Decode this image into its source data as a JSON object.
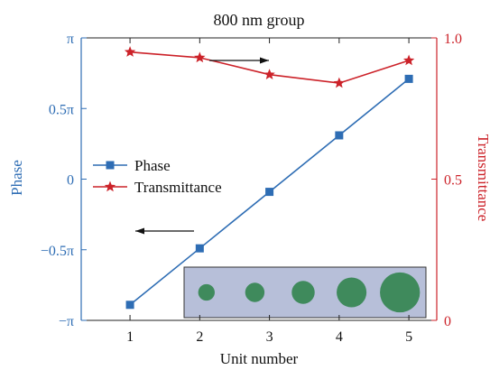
{
  "chart_data": {
    "type": "line",
    "title": "800 nm group",
    "xlabel": "Unit number",
    "ylabel_left": "Phase",
    "ylabel_right": "Transmittance",
    "x": [
      1,
      2,
      3,
      4,
      5
    ],
    "xlim": [
      0.3,
      5.4
    ],
    "x_ticks": [
      "1",
      "2",
      "3",
      "4",
      "5"
    ],
    "left_axis": {
      "ylim": [
        -1,
        1
      ],
      "unit": "π",
      "ticks": [
        -1,
        -0.5,
        0,
        0.5,
        1
      ],
      "tick_labels": [
        "−π",
        "−0.5π",
        "0",
        "0.5π",
        "π"
      ]
    },
    "right_axis": {
      "ylim": [
        0,
        1.0
      ],
      "ticks": [
        0,
        0.5,
        1.0
      ],
      "tick_labels": [
        "0",
        "0.5",
        "1.0"
      ]
    },
    "series": [
      {
        "name": "Phase",
        "axis": "left",
        "marker": "square",
        "color": "#2e6db4",
        "values": [
          -0.89,
          -0.49,
          -0.09,
          0.31,
          0.71
        ]
      },
      {
        "name": "Transmittance",
        "axis": "right",
        "marker": "star",
        "color": "#cc2229",
        "values": [
          0.95,
          0.93,
          0.87,
          0.84,
          0.92
        ]
      }
    ],
    "legend_position": "middle-left",
    "annotations": [
      {
        "type": "arrow",
        "direction": "right",
        "series": "Transmittance"
      },
      {
        "type": "arrow",
        "direction": "left",
        "series": "Phase"
      }
    ],
    "inset": {
      "description": "unit cells with increasing pillar size",
      "count": 5,
      "background": "#b7bfd9",
      "circle_color": "#3f8a5c",
      "relative_sizes": [
        0.36,
        0.42,
        0.5,
        0.65,
        0.87
      ]
    },
    "colors": {
      "left_axis": "#2e6db4",
      "right_axis": "#cc2229",
      "frame": "#222222"
    }
  }
}
